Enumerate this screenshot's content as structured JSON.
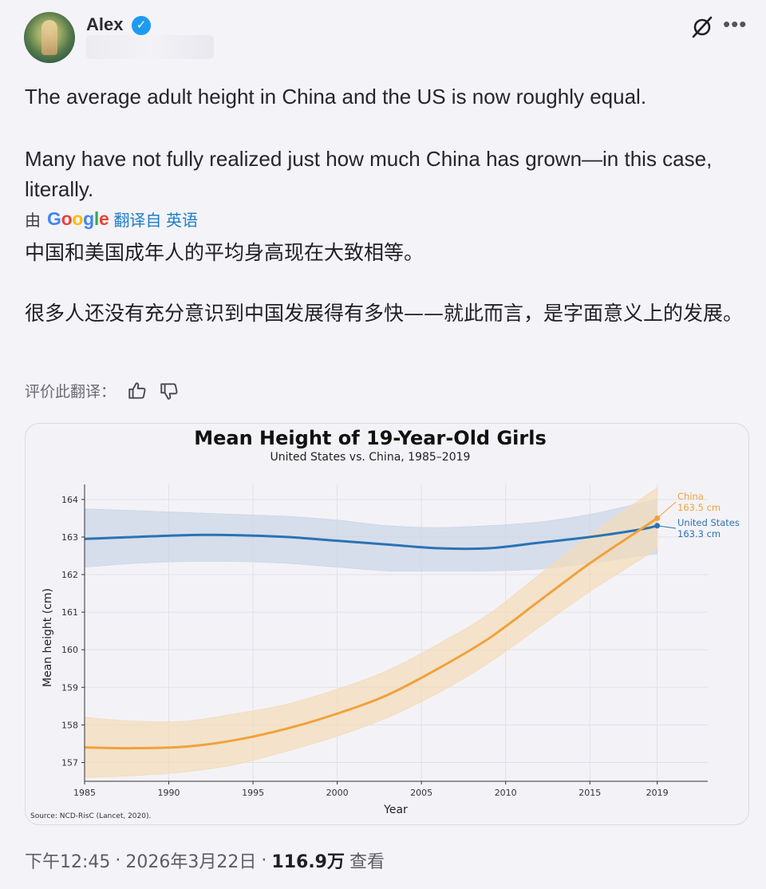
{
  "author": {
    "name": "Alex",
    "verified_icon": "verified-badge-icon",
    "verified_glyph": "✓"
  },
  "icons": {
    "grok": "grok-icon",
    "more": "more-options-icon",
    "more_glyph": "•••",
    "thumbs_up": "thumbs-up-icon",
    "thumbs_down": "thumbs-down-icon"
  },
  "post": {
    "text_en_line1": "The average adult height in China and the US is now roughly equal.",
    "text_en_line2": "Many have not fully realized just how much China has grown—in this case, literally.",
    "translated_prefix": "由",
    "google": [
      "G",
      "o",
      "o",
      "g",
      "l",
      "e"
    ],
    "translated_suffix": "翻译自 英语",
    "text_zh_line1": "中国和美国成年人的平均身高现在大致相等。",
    "text_zh_line2": "很多人还没有充分意识到中国发展得有多快——就此而言，是字面意义上的发展。",
    "rate_label": "评价此翻译："
  },
  "chart_data": {
    "type": "line",
    "title": "Mean Height of 19-Year-Old Girls",
    "subtitle": "United States vs. China, 1985–2019",
    "xlabel": "Year",
    "ylabel": "Mean height (cm)",
    "xlim": [
      1985,
      2022
    ],
    "ylim": [
      156.5,
      164.4
    ],
    "xticks": [
      1985,
      1990,
      1995,
      2000,
      2005,
      2010,
      2015,
      2019
    ],
    "yticks": [
      157,
      158,
      159,
      160,
      161,
      162,
      163,
      164
    ],
    "grid": true,
    "source": "Source: NCD-RisC (Lancet, 2020).",
    "series": [
      {
        "name": "United States",
        "color": "#2a73b3",
        "band_color": "#c9d6e6",
        "end_label_name": "United States",
        "end_label_value": "163.3 cm",
        "x": [
          1985,
          1988,
          1991,
          1994,
          1997,
          2000,
          2003,
          2006,
          2009,
          2012,
          2015,
          2018,
          2019
        ],
        "y": [
          162.95,
          163.0,
          163.05,
          163.05,
          163.0,
          162.9,
          162.8,
          162.7,
          162.7,
          162.85,
          163.0,
          163.2,
          163.3
        ],
        "lower": [
          162.2,
          162.3,
          162.35,
          162.35,
          162.3,
          162.2,
          162.1,
          162.1,
          162.1,
          162.15,
          162.3,
          162.5,
          162.55
        ],
        "upper": [
          163.75,
          163.7,
          163.65,
          163.6,
          163.55,
          163.45,
          163.3,
          163.25,
          163.3,
          163.4,
          163.6,
          163.9,
          164.0
        ]
      },
      {
        "name": "China",
        "color": "#f0a23a",
        "band_color": "#f3dcb8",
        "end_label_name": "China",
        "end_label_value": "163.5 cm",
        "x": [
          1985,
          1988,
          1991,
          1994,
          1997,
          2000,
          2003,
          2006,
          2009,
          2012,
          2015,
          2018,
          2019
        ],
        "y": [
          157.4,
          157.38,
          157.42,
          157.6,
          157.9,
          158.3,
          158.8,
          159.5,
          160.3,
          161.3,
          162.3,
          163.2,
          163.5
        ],
        "lower": [
          156.6,
          156.65,
          156.75,
          156.95,
          157.3,
          157.7,
          158.2,
          158.85,
          159.65,
          160.6,
          161.55,
          162.4,
          162.7
        ],
        "upper": [
          158.2,
          158.1,
          158.1,
          158.3,
          158.55,
          158.95,
          159.45,
          160.15,
          160.95,
          162.0,
          163.05,
          164.0,
          164.3
        ]
      }
    ]
  },
  "footer": {
    "time": "下午12:45",
    "separator": "·",
    "date": "2026年3月22日",
    "views_value": "116.9万",
    "views_label": "查看"
  }
}
